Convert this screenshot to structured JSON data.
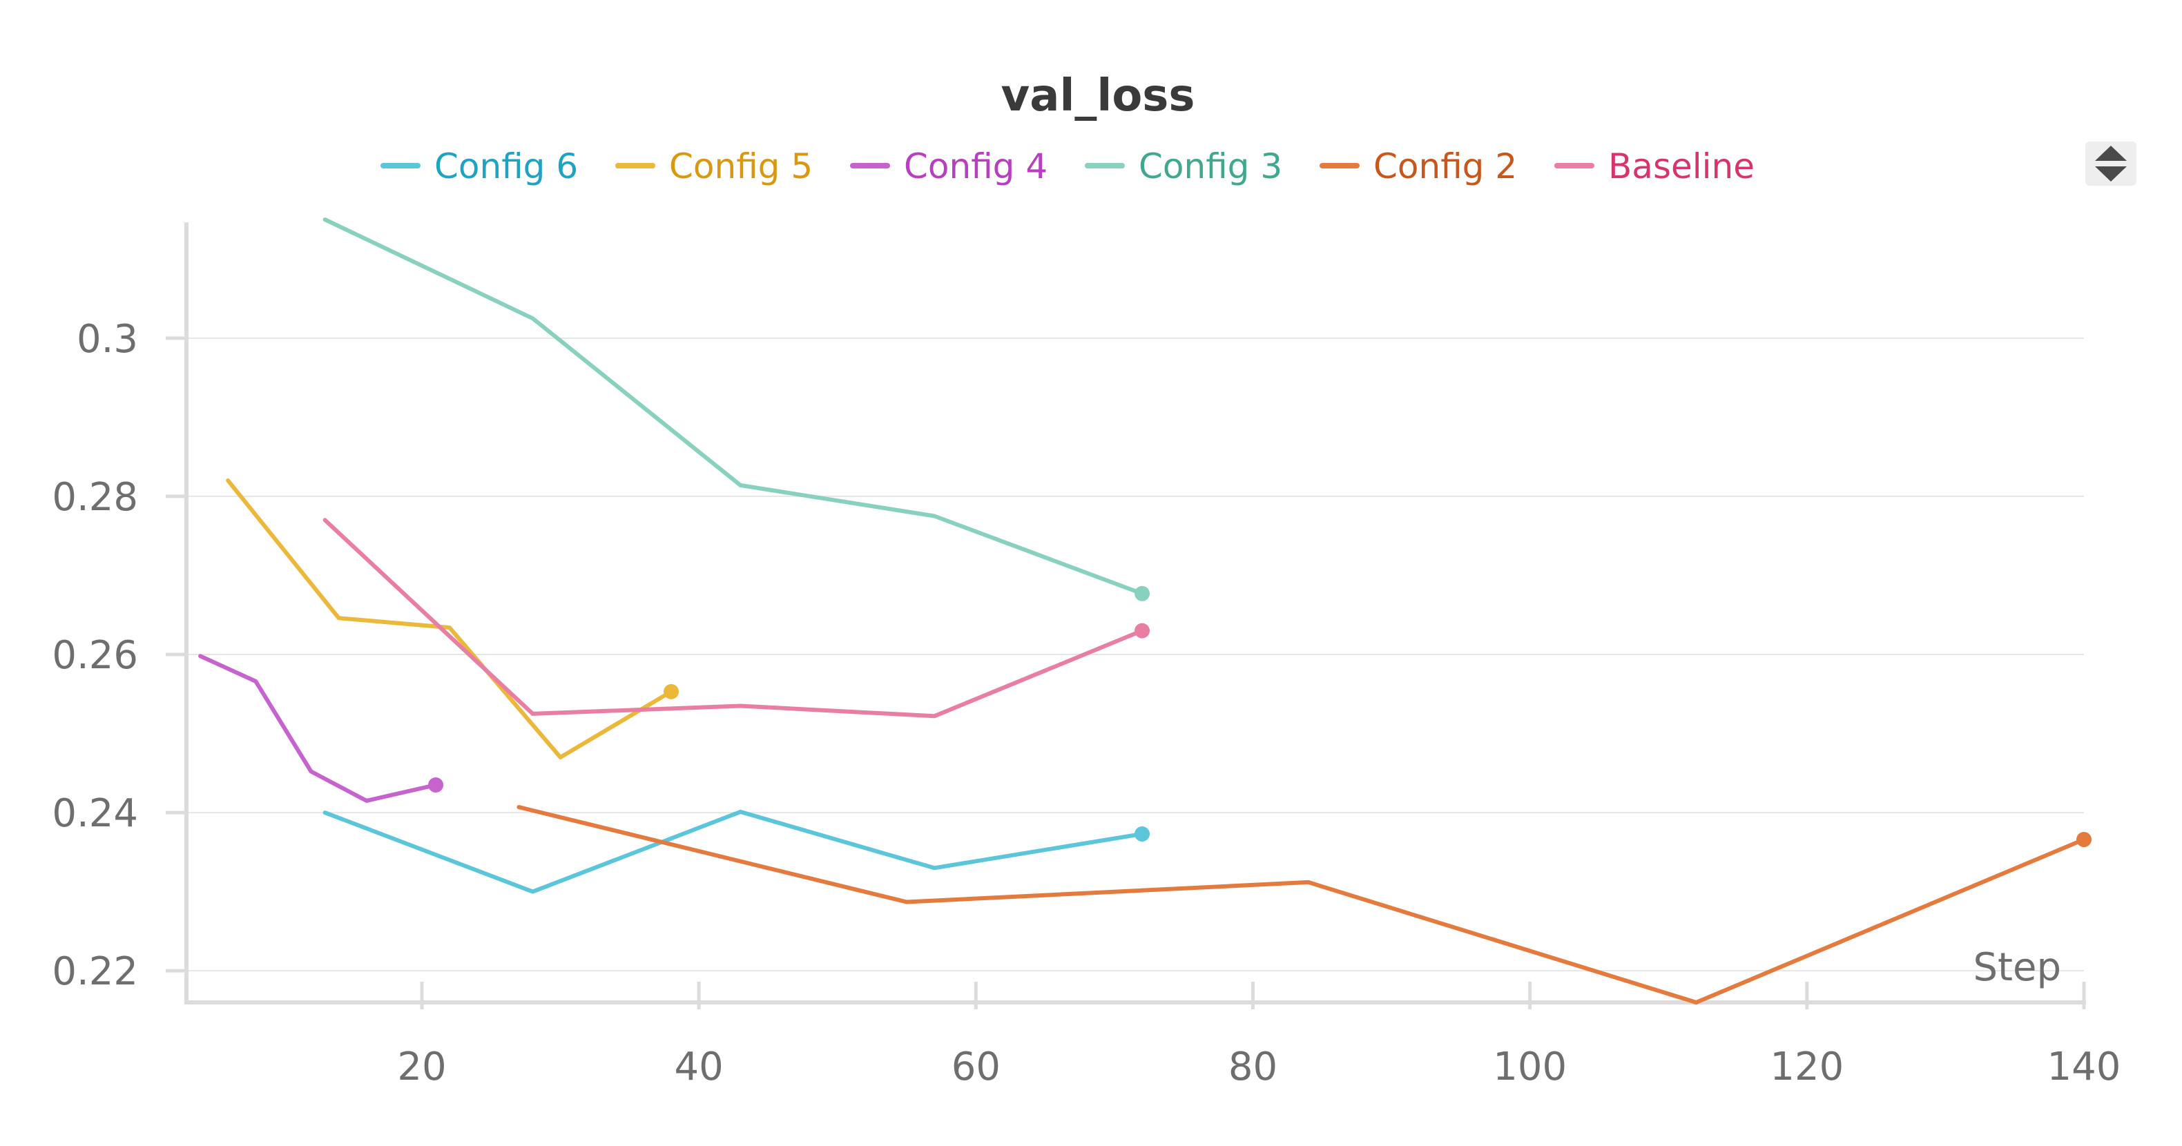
{
  "chart_data": {
    "type": "line",
    "title": "val_loss",
    "xlabel": "Step",
    "ylabel": "",
    "xlim": [
      3,
      140
    ],
    "ylim": [
      0.216,
      0.315
    ],
    "x_ticks": [
      20,
      40,
      60,
      80,
      100,
      120,
      140
    ],
    "y_ticks": [
      0.22,
      0.24,
      0.26,
      0.28,
      0.3
    ],
    "y_tick_labels": [
      "0.22",
      "0.24",
      "0.26",
      "0.28",
      "0.3"
    ],
    "grid": true,
    "legend_position": "top",
    "series": [
      {
        "name": "Config 6",
        "line_color": "#5bc5dc",
        "text_color": "#1fa3c4",
        "points": [
          [
            13,
            0.24
          ],
          [
            28,
            0.23
          ],
          [
            43,
            0.2401
          ],
          [
            57,
            0.233
          ],
          [
            72,
            0.2373
          ]
        ]
      },
      {
        "name": "Config 5",
        "line_color": "#ecb83a",
        "text_color": "#d99712",
        "points": [
          [
            6,
            0.282
          ],
          [
            14,
            0.2646
          ],
          [
            22,
            0.2634
          ],
          [
            30,
            0.247
          ],
          [
            38,
            0.2553
          ]
        ]
      },
      {
        "name": "Config 4",
        "line_color": "#c763cf",
        "text_color": "#b83fc0",
        "points": [
          [
            4,
            0.2598
          ],
          [
            8,
            0.2566
          ],
          [
            12,
            0.2452
          ],
          [
            16,
            0.2415
          ],
          [
            21,
            0.2435
          ]
        ]
      },
      {
        "name": "Config 3",
        "line_color": "#89d1bf",
        "text_color": "#3fa88e",
        "points": [
          [
            13,
            0.315
          ],
          [
            28,
            0.3025
          ],
          [
            43,
            0.2814
          ],
          [
            57,
            0.2775
          ],
          [
            72,
            0.2677
          ]
        ]
      },
      {
        "name": "Config 2",
        "line_color": "#e57a3e",
        "text_color": "#c9571b",
        "points": [
          [
            27,
            0.2407
          ],
          [
            55,
            0.2287
          ],
          [
            84,
            0.2312
          ],
          [
            112,
            0.216
          ],
          [
            140,
            0.2366
          ]
        ]
      },
      {
        "name": "Baseline",
        "line_color": "#e97ea3",
        "text_color": "#d8336c",
        "points": [
          [
            13,
            0.277
          ],
          [
            28,
            0.2525
          ],
          [
            43,
            0.2535
          ],
          [
            57,
            0.2522
          ],
          [
            72,
            0.263
          ]
        ]
      }
    ]
  },
  "controls": {
    "sort_icon": "sort-up-down-icon"
  }
}
